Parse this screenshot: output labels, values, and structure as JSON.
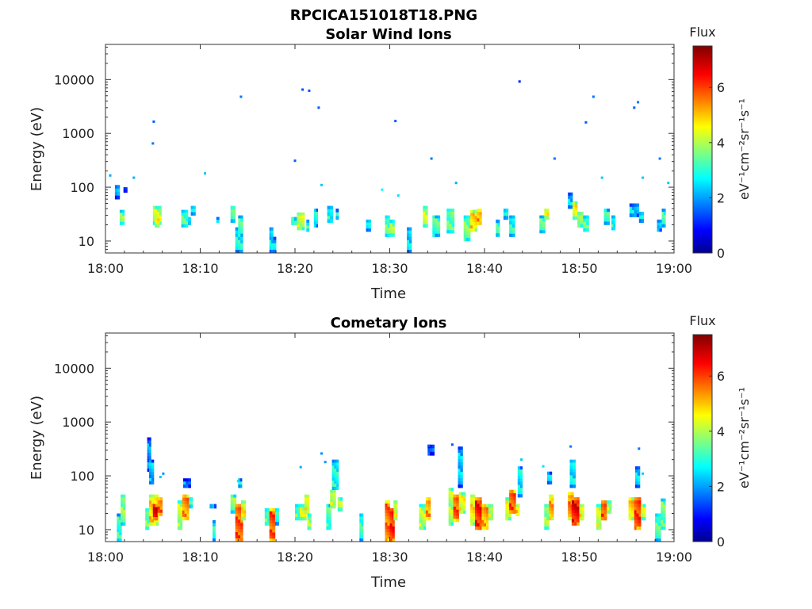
{
  "figure_title": "RPCICA151018T18.PNG",
  "colors": {
    "colormap": "jet",
    "frame": "#333333",
    "background": "#ffffff"
  },
  "chart_data": [
    {
      "type": "heatmap",
      "title": "Solar Wind Ions",
      "xlabel": "Time",
      "ylabel": "Energy (eV)",
      "x_ticks": [
        "18:00",
        "18:10",
        "18:20",
        "18:30",
        "18:40",
        "18:50",
        "19:00"
      ],
      "x_range_min": [
        0,
        60
      ],
      "y_scale": "log",
      "y_ticks": [
        "10",
        "100",
        "1000",
        "10000"
      ],
      "y_tick_values": [
        10,
        100,
        1000,
        10000
      ],
      "y_range": [
        6,
        45000
      ],
      "colorbar": {
        "label": "Flux",
        "unit": "eV⁻¹cm⁻²sr⁻¹s⁻¹",
        "range": [
          0,
          7.5
        ],
        "ticks": [
          "0",
          "2",
          "4",
          "6"
        ],
        "tick_values": [
          0,
          2,
          4,
          6
        ]
      },
      "cells_note": "[time_start_min, time_end_min, energy_low_eV, energy_high_eV, flux]",
      "cells": [
        [
          1.5,
          2.0,
          20,
          38,
          3.8
        ],
        [
          1.0,
          1.5,
          60,
          110,
          2.4
        ],
        [
          1.9,
          2.3,
          80,
          100,
          2.2
        ],
        [
          5.0,
          5.9,
          20,
          45,
          4.2
        ],
        [
          5.2,
          5.7,
          18,
          30,
          5.0
        ],
        [
          8.0,
          8.7,
          18,
          38,
          3.5
        ],
        [
          8.7,
          9.0,
          20,
          28,
          3.0
        ],
        [
          9.0,
          9.5,
          30,
          45,
          3.2
        ],
        [
          11.7,
          12.0,
          22,
          28,
          3.0
        ],
        [
          13.2,
          13.7,
          22,
          45,
          3.6
        ],
        [
          13.7,
          14.5,
          6,
          18,
          3.0
        ],
        [
          14.0,
          14.5,
          12,
          30,
          3.4
        ],
        [
          17.3,
          17.7,
          6,
          18,
          2.6
        ],
        [
          17.7,
          18.0,
          6,
          12,
          2.5
        ],
        [
          19.6,
          20.2,
          20,
          28,
          3.6
        ],
        [
          20.2,
          21.0,
          16,
          34,
          4.4
        ],
        [
          21.2,
          21.5,
          15,
          25,
          3.2
        ],
        [
          22.0,
          22.4,
          18,
          40,
          3.0
        ],
        [
          23.4,
          24.0,
          22,
          45,
          3.0
        ],
        [
          24.3,
          24.6,
          25,
          40,
          2.8
        ],
        [
          27.5,
          28.0,
          15,
          25,
          2.8
        ],
        [
          29.5,
          30.0,
          12,
          30,
          3.6
        ],
        [
          30.0,
          30.5,
          12,
          25,
          4.0
        ],
        [
          31.8,
          32.3,
          6,
          18,
          2.6
        ],
        [
          33.5,
          34.0,
          18,
          45,
          4.2
        ],
        [
          34.5,
          35.3,
          12,
          30,
          3.4
        ],
        [
          36.0,
          36.8,
          14,
          40,
          3.6
        ],
        [
          37.8,
          38.5,
          10,
          30,
          3.8
        ],
        [
          38.5,
          39.2,
          15,
          38,
          5.0
        ],
        [
          39.2,
          39.7,
          20,
          40,
          5.4
        ],
        [
          41.2,
          41.6,
          12,
          25,
          3.2
        ],
        [
          42.0,
          42.5,
          25,
          40,
          2.9
        ],
        [
          42.6,
          43.2,
          12,
          30,
          3.1
        ],
        [
          45.8,
          46.4,
          14,
          30,
          3.5
        ],
        [
          46.3,
          46.8,
          25,
          40,
          4.8
        ],
        [
          48.8,
          49.3,
          40,
          80,
          2.4
        ],
        [
          49.3,
          49.8,
          25,
          55,
          4.6
        ],
        [
          49.8,
          50.4,
          18,
          35,
          4.2
        ],
        [
          50.4,
          51.0,
          15,
          30,
          3.6
        ],
        [
          52.6,
          53.2,
          20,
          40,
          3.3
        ],
        [
          53.4,
          53.8,
          16,
          30,
          3.0
        ],
        [
          55.3,
          56.3,
          28,
          50,
          2.6
        ],
        [
          56.3,
          56.8,
          22,
          35,
          2.8
        ],
        [
          58.2,
          58.7,
          15,
          25,
          2.8
        ],
        [
          58.7,
          59.1,
          18,
          40,
          3.3
        ]
      ],
      "points": [
        [
          0.5,
          165,
          2.2
        ],
        [
          3.0,
          150,
          2.2
        ],
        [
          5.1,
          1650,
          1.6
        ],
        [
          5.0,
          650,
          1.8
        ],
        [
          10.5,
          180,
          2.4
        ],
        [
          14.3,
          4800,
          1.8
        ],
        [
          20.0,
          310,
          1.6
        ],
        [
          20.8,
          6500,
          1.5
        ],
        [
          21.5,
          6200,
          1.5
        ],
        [
          22.5,
          3000,
          1.6
        ],
        [
          22.8,
          110,
          2.4
        ],
        [
          29.2,
          90,
          2.8
        ],
        [
          30.6,
          1700,
          1.6
        ],
        [
          30.9,
          70,
          2.6
        ],
        [
          34.4,
          340,
          1.8
        ],
        [
          37.0,
          120,
          2.2
        ],
        [
          43.7,
          9200,
          1.2
        ],
        [
          47.4,
          340,
          1.8
        ],
        [
          50.7,
          1600,
          1.6
        ],
        [
          51.5,
          4800,
          1.8
        ],
        [
          52.4,
          150,
          2.4
        ],
        [
          55.8,
          3000,
          1.6
        ],
        [
          56.2,
          3800,
          1.8
        ],
        [
          56.7,
          150,
          2.4
        ],
        [
          58.5,
          340,
          1.8
        ],
        [
          59.4,
          120,
          2.4
        ]
      ]
    },
    {
      "type": "heatmap",
      "title": "Cometary Ions",
      "xlabel": "Time",
      "ylabel": "Energy (eV)",
      "x_ticks": [
        "18:00",
        "18:10",
        "18:20",
        "18:30",
        "18:40",
        "18:50",
        "19:00"
      ],
      "x_range_min": [
        0,
        60
      ],
      "y_scale": "log",
      "y_ticks": [
        "10",
        "100",
        "1000",
        "10000"
      ],
      "y_tick_values": [
        10,
        100,
        1000,
        10000
      ],
      "y_range": [
        6,
        45000
      ],
      "colorbar": {
        "label": "Flux",
        "unit": "eV⁻¹cm⁻²sr⁻¹s⁻¹",
        "range": [
          0,
          7.5
        ],
        "ticks": [
          "0",
          "2",
          "4",
          "6"
        ],
        "tick_values": [
          0,
          2,
          4,
          6
        ]
      },
      "cells_note": "[time_start_min, time_end_min, energy_low_eV, energy_high_eV, flux]",
      "cells": [
        [
          1.2,
          1.7,
          6,
          20,
          3.2
        ],
        [
          1.6,
          2.1,
          12,
          45,
          3.8
        ],
        [
          4.4,
          4.8,
          120,
          520,
          2.0
        ],
        [
          4.6,
          5.1,
          70,
          200,
          2.4
        ],
        [
          4.2,
          4.6,
          10,
          25,
          3.8
        ],
        [
          4.6,
          5.6,
          12,
          45,
          5.0
        ],
        [
          5.0,
          5.5,
          15,
          30,
          6.8
        ],
        [
          5.5,
          6.0,
          18,
          40,
          5.8
        ],
        [
          7.6,
          8.1,
          10,
          35,
          4.2
        ],
        [
          8.1,
          8.8,
          15,
          45,
          5.6
        ],
        [
          8.8,
          9.2,
          25,
          40,
          3.8
        ],
        [
          8.2,
          9.0,
          60,
          90,
          2.2
        ],
        [
          11.0,
          11.7,
          25,
          30,
          2.8
        ],
        [
          11.3,
          11.6,
          6,
          15,
          3.0
        ],
        [
          13.2,
          13.8,
          20,
          45,
          3.8
        ],
        [
          13.7,
          14.5,
          6,
          30,
          6.0
        ],
        [
          14.3,
          14.8,
          15,
          35,
          4.8
        ],
        [
          14.0,
          14.4,
          60,
          90,
          2.8
        ],
        [
          16.8,
          17.3,
          12,
          25,
          3.6
        ],
        [
          17.3,
          17.9,
          6,
          25,
          6.0
        ],
        [
          17.9,
          18.3,
          12,
          25,
          3.2
        ],
        [
          20.0,
          20.6,
          15,
          30,
          3.6
        ],
        [
          20.5,
          21.2,
          15,
          30,
          4.4
        ],
        [
          21.0,
          21.5,
          20,
          45,
          4.6
        ],
        [
          21.3,
          21.7,
          10,
          20,
          4.0
        ],
        [
          23.3,
          23.8,
          10,
          30,
          3.4
        ],
        [
          23.7,
          24.3,
          25,
          55,
          4.4
        ],
        [
          23.9,
          24.6,
          55,
          200,
          3.0
        ],
        [
          24.5,
          25.0,
          22,
          40,
          4.2
        ],
        [
          26.8,
          27.2,
          6,
          20,
          3.2
        ],
        [
          29.5,
          30.0,
          6,
          35,
          5.8
        ],
        [
          30.0,
          30.5,
          6,
          25,
          6.4
        ],
        [
          30.4,
          30.8,
          15,
          35,
          4.6
        ],
        [
          33.1,
          33.8,
          10,
          30,
          4.2
        ],
        [
          33.8,
          34.3,
          15,
          40,
          5.4
        ],
        [
          34.0,
          34.7,
          240,
          380,
          2.0
        ],
        [
          36.2,
          36.7,
          12,
          60,
          4.2
        ],
        [
          36.7,
          37.3,
          14,
          45,
          6.0
        ],
        [
          37.2,
          37.7,
          60,
          350,
          2.4
        ],
        [
          37.3,
          38.0,
          20,
          50,
          4.6
        ],
        [
          38.5,
          39.0,
          12,
          45,
          4.8
        ],
        [
          39.0,
          39.7,
          10,
          40,
          6.4
        ],
        [
          39.7,
          40.4,
          10,
          30,
          5.4
        ],
        [
          40.4,
          40.9,
          15,
          30,
          4.4
        ],
        [
          42.2,
          42.8,
          15,
          40,
          4.6
        ],
        [
          42.6,
          43.3,
          20,
          55,
          6.0
        ],
        [
          43.3,
          43.7,
          18,
          30,
          5.0
        ],
        [
          43.5,
          44.0,
          40,
          150,
          2.8
        ],
        [
          46.3,
          46.8,
          10,
          30,
          4.0
        ],
        [
          46.8,
          47.3,
          15,
          45,
          5.4
        ],
        [
          46.6,
          47.1,
          70,
          120,
          2.6
        ],
        [
          48.8,
          49.4,
          15,
          50,
          5.6
        ],
        [
          49.2,
          50.0,
          12,
          40,
          6.6
        ],
        [
          49.0,
          49.6,
          60,
          200,
          2.8
        ],
        [
          50.0,
          50.5,
          15,
          30,
          4.8
        ],
        [
          51.8,
          52.3,
          10,
          30,
          4.4
        ],
        [
          52.3,
          52.9,
          15,
          35,
          6.0
        ],
        [
          52.9,
          53.4,
          20,
          35,
          4.2
        ],
        [
          55.2,
          55.8,
          15,
          40,
          5.0
        ],
        [
          55.8,
          56.5,
          10,
          40,
          6.2
        ],
        [
          55.9,
          56.4,
          60,
          150,
          2.6
        ],
        [
          56.5,
          57.0,
          15,
          30,
          4.4
        ],
        [
          58.0,
          58.6,
          6,
          20,
          3.4
        ],
        [
          58.6,
          59.1,
          10,
          38,
          3.6
        ]
      ],
      "points": [
        [
          5.8,
          95,
          2.4
        ],
        [
          6.1,
          110,
          2.0
        ],
        [
          14.0,
          80,
          2.6
        ],
        [
          20.6,
          145,
          2.2
        ],
        [
          22.8,
          260,
          2.0
        ],
        [
          23.2,
          180,
          2.0
        ],
        [
          34.1,
          360,
          1.6
        ],
        [
          36.6,
          380,
          1.6
        ],
        [
          43.9,
          200,
          2.4
        ],
        [
          46.2,
          150,
          2.6
        ],
        [
          49.1,
          350,
          1.8
        ],
        [
          56.3,
          320,
          1.8
        ],
        [
          56.7,
          110,
          2.4
        ]
      ]
    }
  ]
}
